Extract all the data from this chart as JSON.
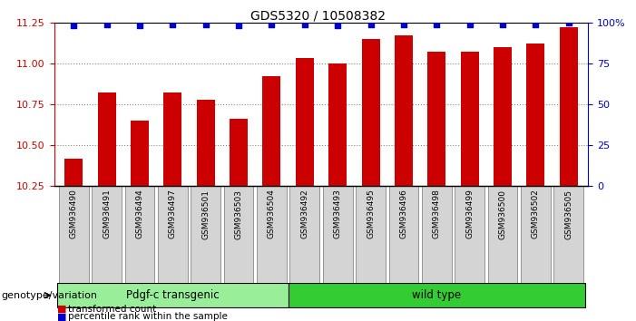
{
  "title": "GDS5320 / 10508382",
  "categories": [
    "GSM936490",
    "GSM936491",
    "GSM936494",
    "GSM936497",
    "GSM936501",
    "GSM936503",
    "GSM936504",
    "GSM936492",
    "GSM936493",
    "GSM936495",
    "GSM936496",
    "GSM936498",
    "GSM936499",
    "GSM936500",
    "GSM936502",
    "GSM936505"
  ],
  "bar_values": [
    10.42,
    10.82,
    10.65,
    10.82,
    10.78,
    10.66,
    10.92,
    11.03,
    11.0,
    11.15,
    11.17,
    11.07,
    11.07,
    11.1,
    11.12,
    11.22
  ],
  "percentile_values": [
    98,
    99,
    98,
    99,
    99,
    98,
    99,
    99,
    98,
    99,
    99,
    99,
    99,
    99,
    99,
    100
  ],
  "ylim_left": [
    10.25,
    11.25
  ],
  "ylim_right": [
    0,
    100
  ],
  "yticks_left": [
    10.25,
    10.5,
    10.75,
    11.0,
    11.25
  ],
  "yticks_right": [
    0,
    25,
    50,
    75,
    100
  ],
  "bar_color": "#cc0000",
  "percentile_color": "#0000cc",
  "group1_label": "Pdgf-c transgenic",
  "group2_label": "wild type",
  "group1_count": 7,
  "group2_count": 9,
  "group1_color": "#99ee99",
  "group2_color": "#33cc33",
  "xlabel_label": "genotype/variation",
  "legend1": "transformed count",
  "legend2": "percentile rank within the sample",
  "background_color": "#ffffff",
  "plot_bg": "#ffffff",
  "grid_color": "#888888",
  "tick_bg_color": "#d4d4d4",
  "border_color": "#555555"
}
